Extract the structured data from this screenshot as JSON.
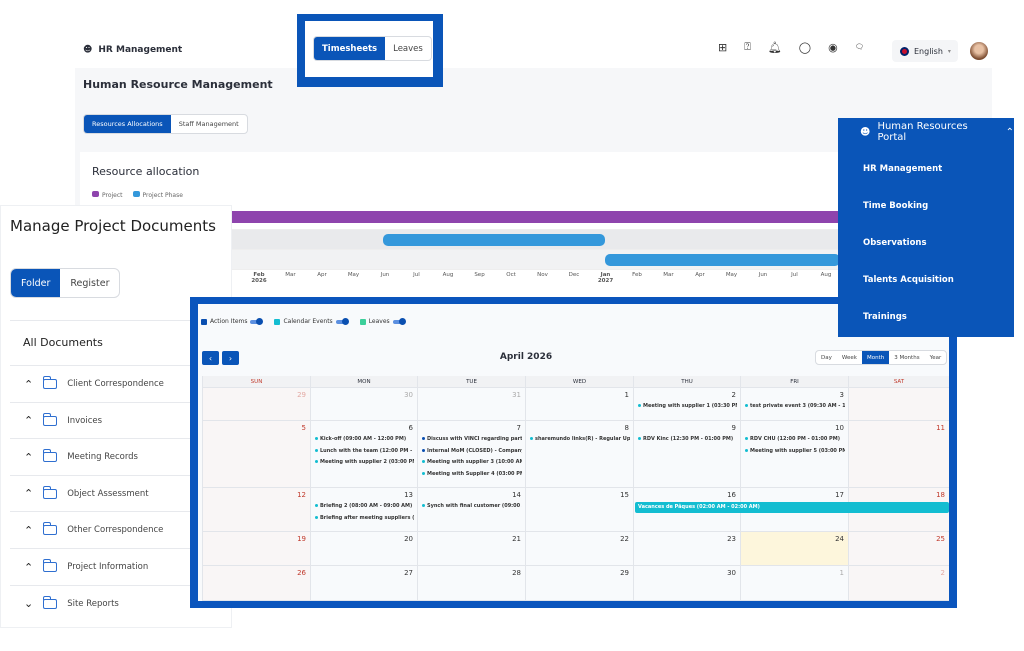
{
  "top": {
    "app": "HR Management",
    "icons": [
      "plus-square-icon",
      "help-doc-icon",
      "bell-icon",
      "chat-icon",
      "chat-notify-icon",
      "faq-icon"
    ],
    "language": "English"
  },
  "timesheet_tabs": {
    "items": [
      "Timesheets",
      "Leaves"
    ],
    "active": 0
  },
  "hr": {
    "title": "Human Resource Management",
    "tabs": [
      "Resources Allocations",
      "Staff Management"
    ],
    "active_tab": 0,
    "card_title": "Resource allocation",
    "legend": [
      {
        "label": "Project",
        "color": "#8e44ad"
      },
      {
        "label": "Project Phase",
        "color": "#3498db"
      }
    ]
  },
  "gantt": {
    "axis": [
      "Feb 2026",
      "Mar",
      "Apr",
      "May",
      "Jun",
      "Jul",
      "Aug",
      "Sep",
      "Oct",
      "Nov",
      "Dec",
      "Jan 2027",
      "Feb",
      "Mar",
      "Apr",
      "May",
      "Jun",
      "Jul",
      "Aug"
    ]
  },
  "portal": {
    "title": "Human Resources Portal",
    "items": [
      "HR Management",
      "Time Booking",
      "Observations",
      "Talents Acquisition",
      "Trainings"
    ]
  },
  "docs": {
    "title": "Manage Project Documents",
    "tabs": [
      "Folder",
      "Register"
    ],
    "active_tab": 0,
    "section": "All Documents",
    "folders": [
      {
        "name": "Client Correspondence",
        "expanded": false
      },
      {
        "name": "Invoices",
        "expanded": false
      },
      {
        "name": "Meeting Records",
        "expanded": false
      },
      {
        "name": "Object Assessment",
        "expanded": false
      },
      {
        "name": "Other Correspondence",
        "expanded": false
      },
      {
        "name": "Project Information",
        "expanded": false
      },
      {
        "name": "Site Reports",
        "expanded": true
      }
    ]
  },
  "calendar": {
    "legend": [
      {
        "label": "Action Items",
        "color": "#0a4fb0"
      },
      {
        "label": "Calendar Events",
        "color": "#13bdd1"
      },
      {
        "label": "Leaves",
        "color": "#3ccf9a"
      }
    ],
    "title": "April 2026",
    "views": [
      "Day",
      "Week",
      "Month",
      "3 Months",
      "Year"
    ],
    "active_view": "Month",
    "days": [
      "SUN",
      "MON",
      "TUE",
      "WED",
      "THU",
      "FRI",
      "SAT"
    ],
    "weeks": [
      [
        {
          "d": "29",
          "o": 1
        },
        {
          "d": "30",
          "o": 1
        },
        {
          "d": "31",
          "o": 1
        },
        {
          "d": "1"
        },
        {
          "d": "2",
          "ev": [
            "Meeting with supplier 1 (03:30 PM - 05:"
          ]
        },
        {
          "d": "3",
          "ev": [
            "test private event 3 (09:30 AM - 10:00 A"
          ]
        },
        {
          "d": ""
        }
      ],
      [
        {
          "d": "5"
        },
        {
          "d": "6",
          "ev": [
            "Kick-off (09:00 AM - 12:00 PM)",
            "Lunch with the team (12:00 PM - 02:00",
            "Meeting with supplier 2 (03:00 PM - 04:"
          ]
        },
        {
          "d": "7",
          "ev": [
            "Discuss with VINCI regarding partnersh",
            "Internal MoM (CLOSED) - Company Lev",
            "Meeting with supplier 3 (10:00 AM - 12:",
            "Meeting with Supplier 4 (03:00 PM - 05:"
          ],
          "act": [
            0,
            1
          ]
        },
        {
          "d": "8",
          "ev": [
            "sharemundo links(R) - Regular Update -"
          ]
        },
        {
          "d": "9",
          "ev": [
            "RDV Kinc (12:30 PM - 01:00 PM)"
          ]
        },
        {
          "d": "10",
          "ev": [
            "RDV CHU (12:00 PM - 01:00 PM)",
            "Meeting with supplier 5 (03:00 PM - 07:"
          ]
        },
        {
          "d": "11"
        }
      ],
      [
        {
          "d": "12"
        },
        {
          "d": "13",
          "ev": [
            "Briefing 2 (08:00 AM - 09:00 AM)",
            "Briefing after meeting suppliers (01:00 I"
          ]
        },
        {
          "d": "14",
          "ev": [
            "Synch with final customer (09:00 AM - :"
          ]
        },
        {
          "d": "15"
        },
        {
          "d": "16"
        },
        {
          "d": "17"
        },
        {
          "d": "18"
        }
      ],
      [
        {
          "d": "19"
        },
        {
          "d": "20"
        },
        {
          "d": "21"
        },
        {
          "d": "22"
        },
        {
          "d": "23"
        },
        {
          "d": "24",
          "today": 1
        },
        {
          "d": "25"
        }
      ],
      [
        {
          "d": "26"
        },
        {
          "d": "27"
        },
        {
          "d": "28"
        },
        {
          "d": "29"
        },
        {
          "d": "30"
        },
        {
          "d": "1",
          "o": 1
        },
        {
          "d": "2",
          "o": 1
        }
      ]
    ],
    "allday": {
      "label": "Vacances de Pâques (02:00 AM - 02:00 AM)",
      "color": "#13bdd1"
    },
    "today_color": "#fdf6dc"
  },
  "colors": {
    "brand": "#0a55b8",
    "weekend": "#c0392b"
  }
}
